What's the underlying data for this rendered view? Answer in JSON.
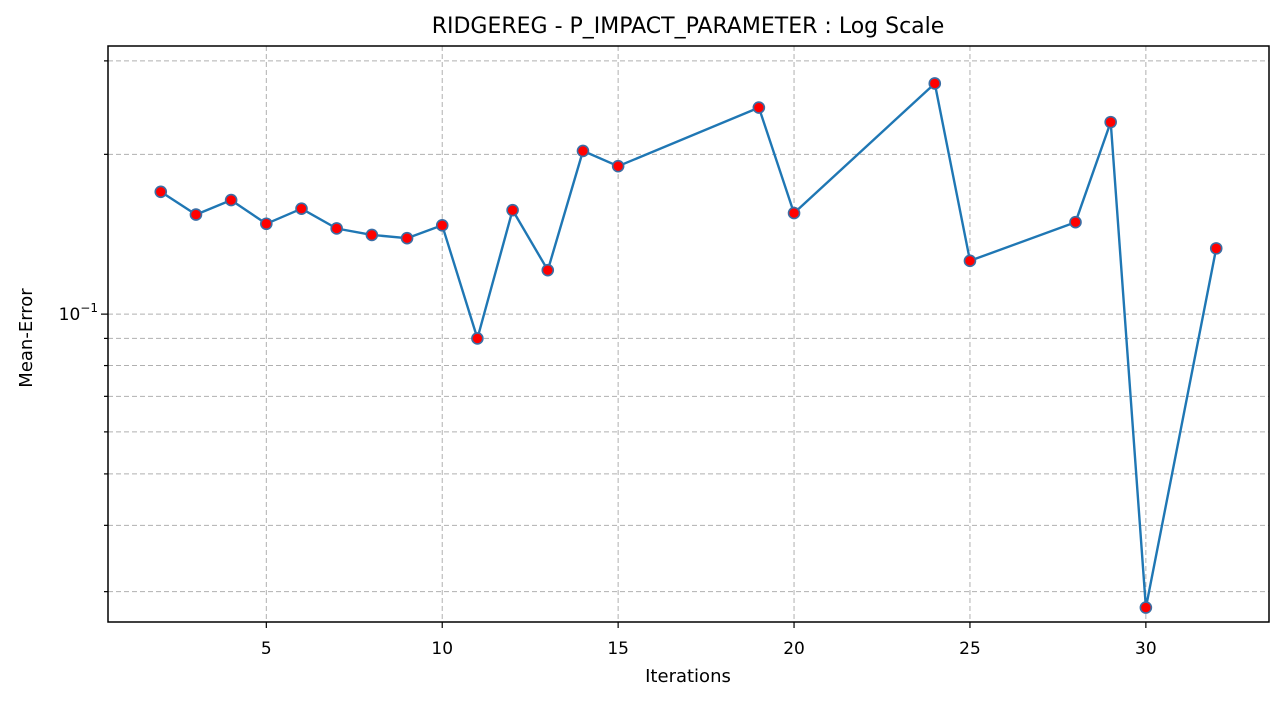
{
  "chart_data": {
    "type": "line",
    "title": "RIDGEREG - P_IMPACT_PARAMETER : Log Scale",
    "xlabel": "Iterations",
    "ylabel": "Mean-Error",
    "yscale": "log",
    "grid": true,
    "xlim": [
      0.5,
      33.5
    ],
    "ylim": [
      0.0263,
      0.32
    ],
    "xticks": [
      5,
      10,
      15,
      20,
      25,
      30
    ],
    "xtick_labels": [
      "5",
      "10",
      "15",
      "20",
      "25",
      "30"
    ],
    "yticks_major": [
      0.1
    ],
    "ytick_major_labels": [
      "10",
      "−1"
    ],
    "yticks_minor": [
      0.03,
      0.04,
      0.05,
      0.06,
      0.07,
      0.08,
      0.09,
      0.2,
      0.3
    ],
    "colors": {
      "line": "#1f77b4",
      "marker_fill": "#ff0000",
      "marker_edge": "#3a6ea5"
    },
    "series": [
      {
        "x": [
          2,
          3,
          4,
          5,
          6,
          7,
          8,
          9,
          10,
          11,
          12,
          13,
          14,
          15,
          19,
          20,
          24,
          25,
          28,
          29,
          30,
          32
        ],
        "values": [
          0.17,
          0.154,
          0.164,
          0.148,
          0.158,
          0.145,
          0.141,
          0.139,
          0.147,
          0.09,
          0.157,
          0.121,
          0.203,
          0.19,
          0.245,
          0.155,
          0.272,
          0.126,
          0.149,
          0.23,
          0.028,
          0.133
        ]
      }
    ]
  }
}
